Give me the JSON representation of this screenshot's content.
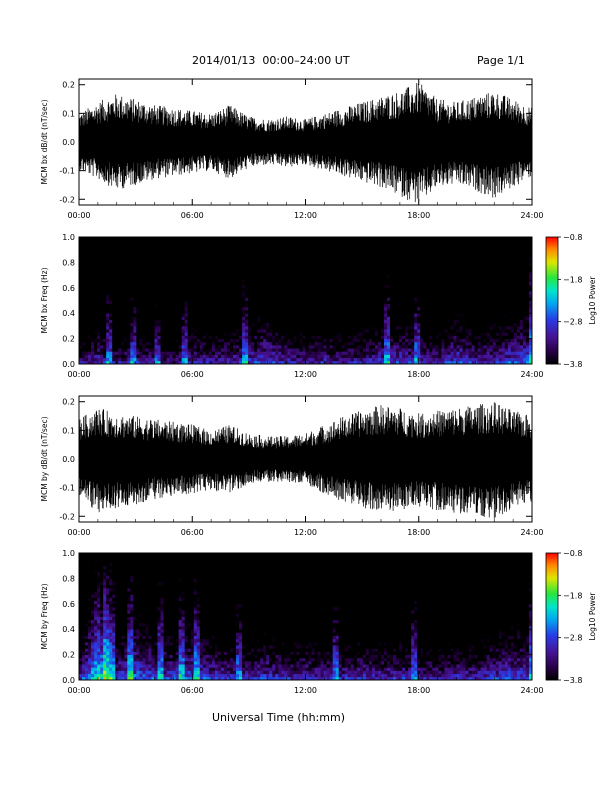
{
  "header": {
    "title": "2014/01/13  00:00–24:00 UT",
    "page": "Page 1/1"
  },
  "footer": {
    "xlabel": "Universal Time (hh:mm)"
  },
  "colors": {
    "trace": "#000000",
    "background": "#ffffff"
  },
  "chart_data": [
    {
      "type": "line",
      "id": "bx-dbdt",
      "ylabel": "MCM bx dB/dt (nT/sec)",
      "x_ticks": [
        "00:00",
        "06:00",
        "12:00",
        "18:00",
        "24:00"
      ],
      "xlim_hours": [
        0,
        24
      ],
      "y_ticks": [
        -0.2,
        -0.1,
        0.0,
        0.1,
        0.2
      ],
      "ylim": [
        -0.22,
        0.22
      ],
      "series": [
        {
          "x_hours": [
            0,
            1,
            2,
            3,
            4,
            5,
            6,
            7,
            8,
            9,
            10,
            11,
            12,
            13,
            14,
            15,
            16,
            17,
            18,
            19,
            20,
            21,
            22,
            23,
            24
          ],
          "envelope_max": [
            0.1,
            0.14,
            0.17,
            0.15,
            0.13,
            0.12,
            0.11,
            0.1,
            0.13,
            0.09,
            0.08,
            0.09,
            0.08,
            0.1,
            0.12,
            0.14,
            0.16,
            0.18,
            0.21,
            0.15,
            0.14,
            0.16,
            0.18,
            0.15,
            0.12
          ],
          "envelope_min": [
            -0.1,
            -0.13,
            -0.17,
            -0.15,
            -0.13,
            -0.12,
            -0.11,
            -0.1,
            -0.13,
            -0.09,
            -0.08,
            -0.09,
            -0.08,
            -0.1,
            -0.12,
            -0.14,
            -0.16,
            -0.19,
            -0.22,
            -0.16,
            -0.15,
            -0.17,
            -0.2,
            -0.16,
            -0.12
          ]
        }
      ]
    },
    {
      "type": "heatmap",
      "id": "bx-spectrogram",
      "ylabel": "MCM bx Freq (Hz)",
      "colorbar_label": "Log10 Power",
      "colorbar_ticks": [
        -0.8,
        -1.8,
        -2.8,
        -3.8
      ],
      "clim": [
        -3.8,
        -0.8
      ],
      "x_ticks": [
        "00:00",
        "06:00",
        "12:00",
        "18:00",
        "24:00"
      ],
      "xlim_hours": [
        0,
        24
      ],
      "y_ticks": [
        0.0,
        0.2,
        0.4,
        0.6,
        0.8,
        1.0
      ],
      "ylim": [
        0.0,
        1.0
      ],
      "band_power_hours": [
        0,
        1,
        2,
        3,
        4,
        5,
        6,
        7,
        8,
        9,
        10,
        11,
        12,
        13,
        14,
        15,
        16,
        17,
        18,
        19,
        20,
        21,
        22,
        23,
        24
      ],
      "low_freq_power": [
        -2.9,
        -2.5,
        -2.8,
        -2.7,
        -2.8,
        -2.9,
        -2.6,
        -2.7,
        -2.6,
        -2.5,
        -2.3,
        -2.6,
        -2.7,
        -2.6,
        -2.7,
        -2.6,
        -2.5,
        -2.4,
        -2.6,
        -2.7,
        -2.3,
        -2.6,
        -2.5,
        -2.3,
        -2.2
      ]
    },
    {
      "type": "line",
      "id": "by-dbdt",
      "ylabel": "MCM by dB/dt (nT/sec)",
      "x_ticks": [
        "00:00",
        "06:00",
        "12:00",
        "18:00",
        "24:00"
      ],
      "xlim_hours": [
        0,
        24
      ],
      "y_ticks": [
        -0.2,
        -0.1,
        0.0,
        0.1,
        0.2
      ],
      "ylim": [
        -0.22,
        0.22
      ],
      "series": [
        {
          "x_hours": [
            0,
            1,
            2,
            3,
            4,
            5,
            6,
            7,
            8,
            9,
            10,
            11,
            12,
            13,
            14,
            15,
            16,
            17,
            18,
            19,
            20,
            21,
            22,
            23,
            24
          ],
          "envelope_max": [
            0.14,
            0.18,
            0.16,
            0.15,
            0.14,
            0.13,
            0.12,
            0.1,
            0.12,
            0.09,
            0.08,
            0.08,
            0.09,
            0.12,
            0.15,
            0.17,
            0.19,
            0.18,
            0.16,
            0.17,
            0.18,
            0.19,
            0.2,
            0.17,
            0.15
          ],
          "envelope_min": [
            -0.14,
            -0.19,
            -0.17,
            -0.16,
            -0.14,
            -0.13,
            -0.12,
            -0.11,
            -0.12,
            -0.09,
            -0.08,
            -0.08,
            -0.09,
            -0.12,
            -0.15,
            -0.17,
            -0.19,
            -0.18,
            -0.17,
            -0.18,
            -0.19,
            -0.2,
            -0.22,
            -0.18,
            -0.15
          ]
        }
      ]
    },
    {
      "type": "heatmap",
      "id": "by-spectrogram",
      "ylabel": "MCM by Freq (Hz)",
      "colorbar_label": "Log10 Power",
      "colorbar_ticks": [
        -0.8,
        -1.8,
        -2.8,
        -3.8
      ],
      "clim": [
        -3.8,
        -0.8
      ],
      "x_ticks": [
        "00:00",
        "06:00",
        "12:00",
        "18:00",
        "24:00"
      ],
      "xlim_hours": [
        0,
        24
      ],
      "y_ticks": [
        0.0,
        0.2,
        0.4,
        0.6,
        0.8,
        1.0
      ],
      "ylim": [
        0.0,
        1.0
      ],
      "band_power_hours": [
        0,
        1,
        2,
        3,
        4,
        5,
        6,
        7,
        8,
        9,
        10,
        11,
        12,
        13,
        14,
        15,
        16,
        17,
        18,
        19,
        20,
        21,
        22,
        23,
        24
      ],
      "low_freq_power": [
        -2.6,
        -1.4,
        -2.4,
        -2.1,
        -2.3,
        -2.4,
        -2.2,
        -2.4,
        -2.5,
        -2.6,
        -2.4,
        -2.6,
        -2.5,
        -2.6,
        -2.6,
        -2.5,
        -2.6,
        -2.5,
        -2.6,
        -2.7,
        -2.5,
        -2.6,
        -2.4,
        -2.3,
        -2.3
      ]
    }
  ]
}
